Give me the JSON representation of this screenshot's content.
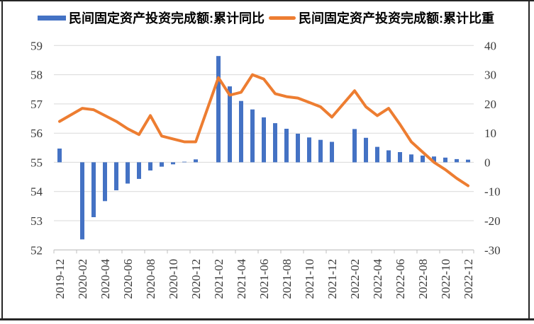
{
  "chart_data": {
    "type": "combo",
    "title": "",
    "x": [
      "2019-12",
      "2020-02",
      "2020-03",
      "2020-04",
      "2020-05",
      "2020-06",
      "2020-07",
      "2020-08",
      "2020-09",
      "2020-10",
      "2020-11",
      "2020-12",
      "2021-02",
      "2021-03",
      "2021-04",
      "2021-05",
      "2021-06",
      "2021-07",
      "2021-08",
      "2021-09",
      "2021-10",
      "2021-11",
      "2021-12",
      "2022-02",
      "2022-03",
      "2022-04",
      "2022-05",
      "2022-06",
      "2022-07",
      "2022-08",
      "2022-09",
      "2022-10",
      "2022-11",
      "2022-12"
    ],
    "series": [
      {
        "name": "民间固定资产投资完成额:累计同比",
        "type": "bar",
        "axis": "right",
        "color": "#4472C4",
        "values": [
          4.7,
          -26.4,
          -18.8,
          -13.3,
          -9.6,
          -7.3,
          -5.7,
          -2.8,
          -1.5,
          -0.7,
          0.2,
          1.0,
          36.4,
          26.0,
          21.0,
          18.1,
          15.4,
          13.4,
          11.5,
          9.8,
          8.5,
          7.7,
          7.0,
          11.4,
          8.4,
          5.3,
          4.1,
          3.5,
          2.7,
          2.3,
          2.0,
          1.6,
          1.1,
          0.9
        ]
      },
      {
        "name": "民间固定资产投资完成额:累计比重",
        "type": "line",
        "axis": "left",
        "color": "#ED7D31",
        "values": [
          56.4,
          56.85,
          56.8,
          56.6,
          56.4,
          56.15,
          55.95,
          56.6,
          55.9,
          55.8,
          55.7,
          55.7,
          57.9,
          57.3,
          57.4,
          58.0,
          57.85,
          57.35,
          57.25,
          57.2,
          57.05,
          56.9,
          56.55,
          57.45,
          56.9,
          56.6,
          56.85,
          56.3,
          55.7,
          55.35,
          55.0,
          54.75,
          54.45,
          54.2
        ]
      }
    ],
    "axes": {
      "left": {
        "min": 52,
        "max": 59,
        "step": 1,
        "ticks": [
          52,
          53,
          54,
          55,
          56,
          57,
          58,
          59
        ]
      },
      "right": {
        "min": -30,
        "max": 40,
        "step": 10,
        "ticks": [
          -30,
          -20,
          -10,
          0,
          10,
          20,
          30,
          40
        ]
      }
    },
    "x_tick_labels": [
      "2019-12",
      "2020-02",
      "2020-04",
      "2020-06",
      "2020-08",
      "2020-10",
      "2020-12",
      "2021-02",
      "2021-04",
      "2021-06",
      "2021-08",
      "2021-10",
      "2021-12",
      "2022-02",
      "2022-04",
      "2022-06",
      "2022-08",
      "2022-10",
      "2022-12"
    ],
    "grid": true,
    "legend_position": "top"
  },
  "colors": {
    "grid": "#D9D9D9",
    "axis_line": "#BFBFBF",
    "tick_text": "#3B3B3B",
    "frame": "#262626",
    "background": "#FFFFFF"
  }
}
